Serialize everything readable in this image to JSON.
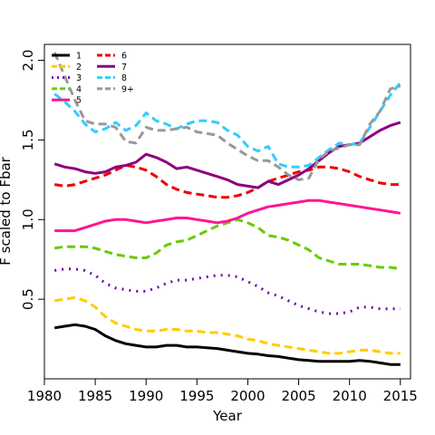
{
  "chart_data": {
    "type": "line",
    "title": "",
    "xlabel": "Year",
    "ylabel": "F scaled to Fbar",
    "xlim": [
      1980,
      2016
    ],
    "ylim": [
      0.0,
      2.1
    ],
    "x_ticks": [
      "1980",
      "1985",
      "1990",
      "1995",
      "2000",
      "2005",
      "2010",
      "2015"
    ],
    "y_ticks": [
      "0.5",
      "1.0",
      "1.5",
      "2.0"
    ],
    "legend_position": "top-left",
    "grid": false,
    "x": [
      1981,
      1982,
      1983,
      1984,
      1985,
      1986,
      1987,
      1988,
      1989,
      1990,
      1991,
      1992,
      1993,
      1994,
      1995,
      1996,
      1997,
      1998,
      1999,
      2000,
      2001,
      2002,
      2003,
      2004,
      2005,
      2006,
      2007,
      2008,
      2009,
      2010,
      2011,
      2012,
      2013,
      2014,
      2015
    ],
    "series": [
      {
        "name": "1",
        "color": "#000000",
        "dash": "solid",
        "values": [
          0.32,
          0.33,
          0.34,
          0.33,
          0.31,
          0.27,
          0.24,
          0.22,
          0.21,
          0.2,
          0.2,
          0.21,
          0.21,
          0.2,
          0.2,
          0.195,
          0.19,
          0.18,
          0.17,
          0.16,
          0.155,
          0.145,
          0.14,
          0.13,
          0.12,
          0.115,
          0.11,
          0.11,
          0.11,
          0.11,
          0.115,
          0.11,
          0.1,
          0.09,
          0.09
        ]
      },
      {
        "name": "2",
        "color": "#FFCC00",
        "dash": "dashed",
        "values": [
          0.49,
          0.5,
          0.51,
          0.49,
          0.45,
          0.39,
          0.35,
          0.33,
          0.31,
          0.3,
          0.3,
          0.31,
          0.31,
          0.3,
          0.3,
          0.29,
          0.29,
          0.28,
          0.27,
          0.25,
          0.24,
          0.22,
          0.21,
          0.2,
          0.19,
          0.18,
          0.17,
          0.16,
          0.16,
          0.17,
          0.18,
          0.18,
          0.17,
          0.16,
          0.16
        ]
      },
      {
        "name": "3",
        "color": "#6A0DAD",
        "dash": "dotted",
        "values": [
          0.68,
          0.69,
          0.69,
          0.68,
          0.65,
          0.6,
          0.57,
          0.56,
          0.55,
          0.55,
          0.57,
          0.6,
          0.62,
          0.62,
          0.63,
          0.64,
          0.65,
          0.65,
          0.64,
          0.61,
          0.58,
          0.54,
          0.52,
          0.49,
          0.46,
          0.44,
          0.42,
          0.41,
          0.41,
          0.42,
          0.45,
          0.45,
          0.44,
          0.44,
          0.44
        ]
      },
      {
        "name": "4",
        "color": "#66CC00",
        "dash": "dashed",
        "values": [
          0.82,
          0.83,
          0.83,
          0.83,
          0.82,
          0.8,
          0.78,
          0.77,
          0.76,
          0.76,
          0.79,
          0.84,
          0.86,
          0.87,
          0.9,
          0.93,
          0.96,
          0.98,
          1.0,
          0.98,
          0.95,
          0.9,
          0.89,
          0.87,
          0.84,
          0.81,
          0.76,
          0.74,
          0.72,
          0.72,
          0.72,
          0.71,
          0.7,
          0.7,
          0.69
        ]
      },
      {
        "name": "5",
        "color": "#FF1493",
        "dash": "solid",
        "values": [
          0.93,
          0.93,
          0.93,
          0.95,
          0.97,
          0.99,
          1.0,
          1.0,
          0.99,
          0.98,
          0.99,
          1.0,
          1.01,
          1.01,
          1.0,
          0.99,
          0.98,
          0.99,
          1.01,
          1.04,
          1.06,
          1.08,
          1.09,
          1.1,
          1.11,
          1.12,
          1.12,
          1.11,
          1.1,
          1.09,
          1.08,
          1.07,
          1.06,
          1.05,
          1.04
        ]
      },
      {
        "name": "6",
        "color": "#EE0000",
        "dash": "dashed",
        "values": [
          1.22,
          1.21,
          1.22,
          1.24,
          1.26,
          1.28,
          1.31,
          1.34,
          1.33,
          1.31,
          1.27,
          1.22,
          1.19,
          1.17,
          1.16,
          1.15,
          1.14,
          1.14,
          1.15,
          1.17,
          1.2,
          1.24,
          1.26,
          1.28,
          1.3,
          1.31,
          1.33,
          1.33,
          1.32,
          1.3,
          1.27,
          1.25,
          1.23,
          1.22,
          1.22
        ]
      },
      {
        "name": "7",
        "color": "#8B0080",
        "dash": "solid",
        "values": [
          1.35,
          1.33,
          1.32,
          1.3,
          1.29,
          1.3,
          1.33,
          1.34,
          1.36,
          1.41,
          1.39,
          1.36,
          1.32,
          1.33,
          1.31,
          1.29,
          1.27,
          1.25,
          1.22,
          1.21,
          1.2,
          1.24,
          1.22,
          1.25,
          1.28,
          1.32,
          1.37,
          1.42,
          1.46,
          1.47,
          1.48,
          1.52,
          1.56,
          1.59,
          1.61
        ]
      },
      {
        "name": "8",
        "color": "#33CCFF",
        "dash": "dashed",
        "values": [
          1.79,
          1.74,
          1.68,
          1.6,
          1.55,
          1.57,
          1.61,
          1.56,
          1.59,
          1.67,
          1.62,
          1.6,
          1.57,
          1.6,
          1.62,
          1.62,
          1.61,
          1.56,
          1.53,
          1.46,
          1.43,
          1.46,
          1.35,
          1.33,
          1.33,
          1.34,
          1.39,
          1.44,
          1.48,
          1.47,
          1.48,
          1.58,
          1.68,
          1.78,
          1.86
        ]
      },
      {
        "name": "9+",
        "color": "#999999",
        "dash": "dashed",
        "values": [
          2.05,
          1.9,
          1.75,
          1.62,
          1.6,
          1.6,
          1.58,
          1.49,
          1.48,
          1.58,
          1.56,
          1.56,
          1.57,
          1.58,
          1.55,
          1.54,
          1.53,
          1.48,
          1.44,
          1.4,
          1.37,
          1.37,
          1.33,
          1.28,
          1.25,
          1.26,
          1.38,
          1.43,
          1.45,
          1.47,
          1.47,
          1.6,
          1.68,
          1.82,
          1.84
        ]
      }
    ]
  }
}
